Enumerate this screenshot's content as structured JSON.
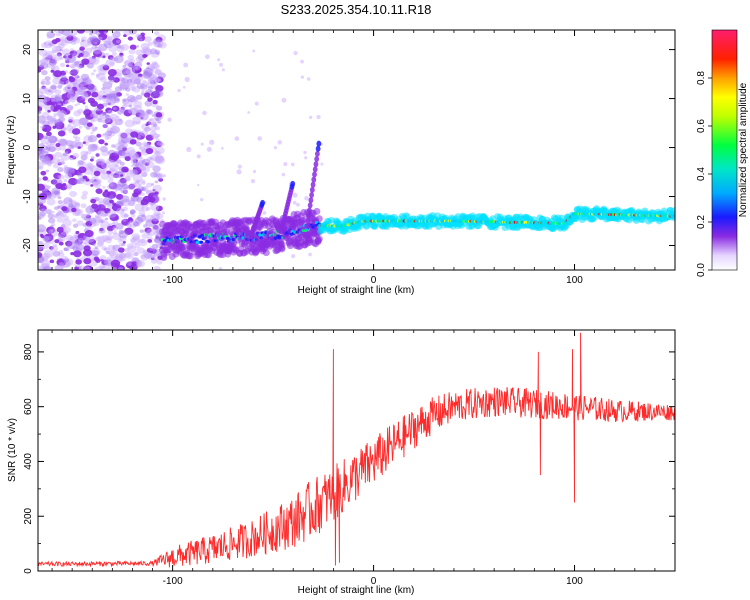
{
  "figure_title": "S233.2025.354.10.11.R18",
  "colors": {
    "axis": "#000000",
    "snr_line": "#ff2a2a",
    "background": "#ffffff"
  },
  "chart_data": [
    {
      "type": "heatmap",
      "name": "spectrogram",
      "title": "S233.2025.354.10.11.R18",
      "xlabel": "Height of straight line (km)",
      "ylabel": "Frequency (Hz)",
      "xlim": [
        -167,
        150
      ],
      "ylim": [
        -25,
        24
      ],
      "xticks": [
        -100,
        0,
        100
      ],
      "xticklabels": [
        "-100",
        "0",
        "100"
      ],
      "yticks": [
        -20,
        -10,
        0,
        10,
        20
      ],
      "yticklabels": [
        "-20",
        "-10",
        "0",
        "10",
        "20"
      ],
      "features": {
        "noise_region_x": [
          -167,
          -105
        ],
        "signal_track": [
          {
            "x": -105,
            "y": -19
          },
          {
            "x": -80,
            "y": -18.5
          },
          {
            "x": -50,
            "y": -18
          },
          {
            "x": -27,
            "y": -16
          },
          {
            "x": -15,
            "y": -16
          },
          {
            "x": -5,
            "y": -15
          },
          {
            "x": 40,
            "y": -15
          },
          {
            "x": 95,
            "y": -15.5
          },
          {
            "x": 100,
            "y": -13.5
          },
          {
            "x": 150,
            "y": -14
          }
        ],
        "burst_branches": [
          {
            "x": -27,
            "y": 1.5
          },
          {
            "x": -40,
            "y": -7
          },
          {
            "x": -55,
            "y": -11
          }
        ]
      },
      "colorbar": {
        "label": "Normalized spectral amplitude",
        "range": [
          0,
          1
        ],
        "ticks": [
          0.0,
          0.2,
          0.4,
          0.6,
          0.8
        ],
        "ticklabels": [
          "0.0",
          "0.2",
          "0.4",
          "0.6",
          "0.8"
        ],
        "colormap": [
          "#ffffff",
          "#c9a8ff",
          "#8a2be2",
          "#1a1aff",
          "#00c8ff",
          "#00ff66",
          "#ffff00",
          "#ff8c00",
          "#ff0000",
          "#ff1e6e"
        ]
      }
    },
    {
      "type": "line",
      "name": "snr",
      "xlabel": "Height of straight line (km)",
      "ylabel": "SNR (10 * v/v)",
      "xlim": [
        -167,
        150
      ],
      "ylim": [
        0,
        880
      ],
      "xticks": [
        -100,
        0,
        100
      ],
      "xticklabels": [
        "-100",
        "0",
        "100"
      ],
      "yticks": [
        0,
        200,
        400,
        600,
        800
      ],
      "yticklabels": [
        "0",
        "200",
        "400",
        "600",
        "800"
      ],
      "trend": {
        "x": [
          -167,
          -110,
          -100,
          -80,
          -60,
          -40,
          -30,
          -20,
          -10,
          0,
          10,
          20,
          30,
          40,
          60,
          80,
          100,
          120,
          150
        ],
        "y": [
          25,
          28,
          50,
          80,
          120,
          180,
          230,
          280,
          340,
          400,
          460,
          520,
          570,
          600,
          620,
          610,
          600,
          585,
          580
        ]
      },
      "noise_amplitude": {
        "x": [
          -167,
          -110,
          -100,
          -60,
          -30,
          0,
          40,
          100,
          150
        ],
        "y": [
          8,
          8,
          40,
          70,
          110,
          90,
          60,
          50,
          30
        ]
      },
      "spikes": [
        {
          "x": -20,
          "y": 810
        },
        {
          "x": -19,
          "y": 20
        },
        {
          "x": -17,
          "y": 30
        },
        {
          "x": 82,
          "y": 800
        },
        {
          "x": 83,
          "y": 350
        },
        {
          "x": 99,
          "y": 810
        },
        {
          "x": 100,
          "y": 250
        },
        {
          "x": 103,
          "y": 870
        }
      ]
    }
  ]
}
